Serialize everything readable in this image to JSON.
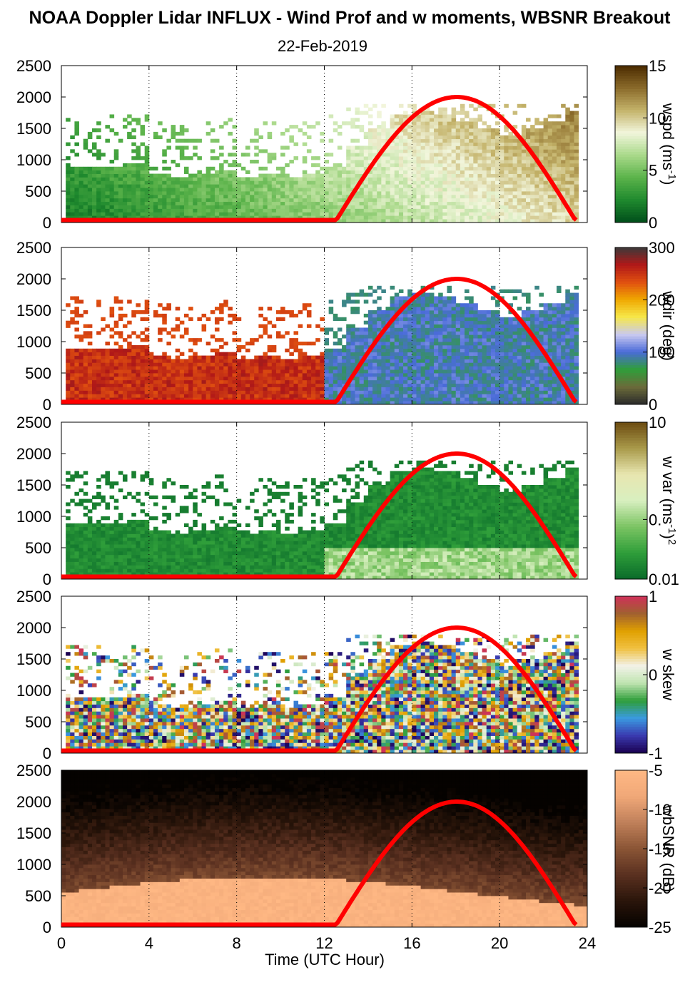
{
  "title": "NOAA Doppler Lidar INFLUX - Wind Prof and w moments, WBSNR Breakout",
  "date": "22-Feb-2019",
  "xlabel": "Time (UTC Hour)",
  "chart_data": [
    {
      "type": "heatmap",
      "variable": "wspd",
      "colorbar_label": "wspd (ms-1)",
      "colorbar_label_base": "wspd (ms",
      "colorbar_label_sup": "-1",
      "colorbar_label_end": ")",
      "colorbar_ticks": [
        "15",
        "10",
        "5",
        "0"
      ],
      "colorbar_range": [
        0,
        15
      ],
      "colormap": [
        "#004d1a",
        "#1f8a2e",
        "#5bb34a",
        "#a9d98a",
        "#f2f6dc",
        "#c4b36a",
        "#8a6a2a",
        "#4a2a00"
      ],
      "x": [
        0,
        4,
        8,
        12,
        16,
        20,
        24
      ],
      "xlim": [
        0,
        24
      ],
      "ylim": [
        0,
        2500
      ],
      "yticks": [
        0,
        500,
        1000,
        1500,
        2000,
        2500
      ],
      "cloud_free_layer_top_m": [
        900,
        900,
        900,
        950,
        800,
        750,
        800,
        850,
        700,
        800,
        750,
        800,
        900,
        1200,
        1500,
        1700,
        1800,
        1700,
        1600,
        1500,
        1400,
        1500,
        1600,
        1800
      ]
    },
    {
      "type": "heatmap",
      "variable": "wdir",
      "colorbar_label": "wdir (deg)",
      "colorbar_label_base": "wdir (deg)",
      "colorbar_ticks": [
        "300",
        "200",
        "100",
        "0"
      ],
      "colorbar_range": [
        0,
        360
      ],
      "colormap": [
        "#2b2b2b",
        "#6b6b3a",
        "#2f9e3a",
        "#4a6bd9",
        "#c9c9f0",
        "#f6e84a",
        "#f0a800",
        "#e05010",
        "#b01818",
        "#3a3a3a"
      ],
      "xlim": [
        0,
        24
      ],
      "ylim": [
        0,
        2500
      ],
      "yticks": [
        0,
        500,
        1000,
        1500,
        2000,
        2500
      ]
    },
    {
      "type": "heatmap",
      "variable": "w var",
      "colorbar_label": "w var (ms-1)2",
      "colorbar_label_base": "w var (ms",
      "colorbar_label_sup": "-1",
      "colorbar_label_end": ")",
      "colorbar_label_sup2": "2",
      "colorbar_ticks": [
        "10",
        "0.",
        "0.01"
      ],
      "colorbar_scale": "log",
      "colorbar_range": [
        0.01,
        10
      ],
      "colormap": [
        "#0a6b2a",
        "#2f9e3a",
        "#7cc463",
        "#d8efc0",
        "#e8e6b0",
        "#a99a4a",
        "#6b4a10"
      ],
      "xlim": [
        0,
        24
      ],
      "ylim": [
        0,
        2500
      ],
      "yticks": [
        0,
        500,
        1000,
        1500,
        2000,
        2500
      ]
    },
    {
      "type": "heatmap",
      "variable": "w skew",
      "colorbar_label": "w skew",
      "colorbar_label_base": "w skew",
      "colorbar_ticks": [
        "1",
        "0",
        "-1"
      ],
      "colorbar_range": [
        -1,
        1
      ],
      "colormap": [
        "#1a0050",
        "#3a3ab0",
        "#3a9ae0",
        "#2f9e3a",
        "#bfe4b0",
        "#f2f2e8",
        "#f0c040",
        "#e0a000",
        "#a06030",
        "#d0305a"
      ],
      "xlim": [
        0,
        24
      ],
      "ylim": [
        0,
        2500
      ],
      "yticks": [
        0,
        500,
        1000,
        1500,
        2000,
        2500
      ]
    },
    {
      "type": "heatmap",
      "variable": "wbSNR",
      "colorbar_label": "wbSNR (dB)",
      "colorbar_label_base": "wbSNR (dB)",
      "colorbar_ticks": [
        "-5",
        "-10",
        "-15",
        "-20",
        "-25"
      ],
      "colorbar_range": [
        -25,
        -5
      ],
      "colormap": [
        "#050200",
        "#2a150a",
        "#5a3020",
        "#8a5535",
        "#c0805a",
        "#f0a878",
        "#ffb884"
      ],
      "xlim": [
        0,
        24
      ],
      "ylim": [
        0,
        2500
      ],
      "yticks": [
        0,
        500,
        1000,
        1500,
        2000,
        2500
      ]
    }
  ],
  "overlay": {
    "name": "solar elevation",
    "color": "#ff0000",
    "sunrise_hour": 12.55,
    "solar_noon_hour": 18.05,
    "sunset_hour": 23.45,
    "peak_height_m": 2000,
    "base_height_m": 40
  },
  "x_tick_labels": [
    "0",
    "4",
    "8",
    "12",
    "16",
    "20",
    "24"
  ],
  "y_tick_labels": [
    "0",
    "500",
    "1000",
    "1500",
    "2000",
    "2500"
  ]
}
